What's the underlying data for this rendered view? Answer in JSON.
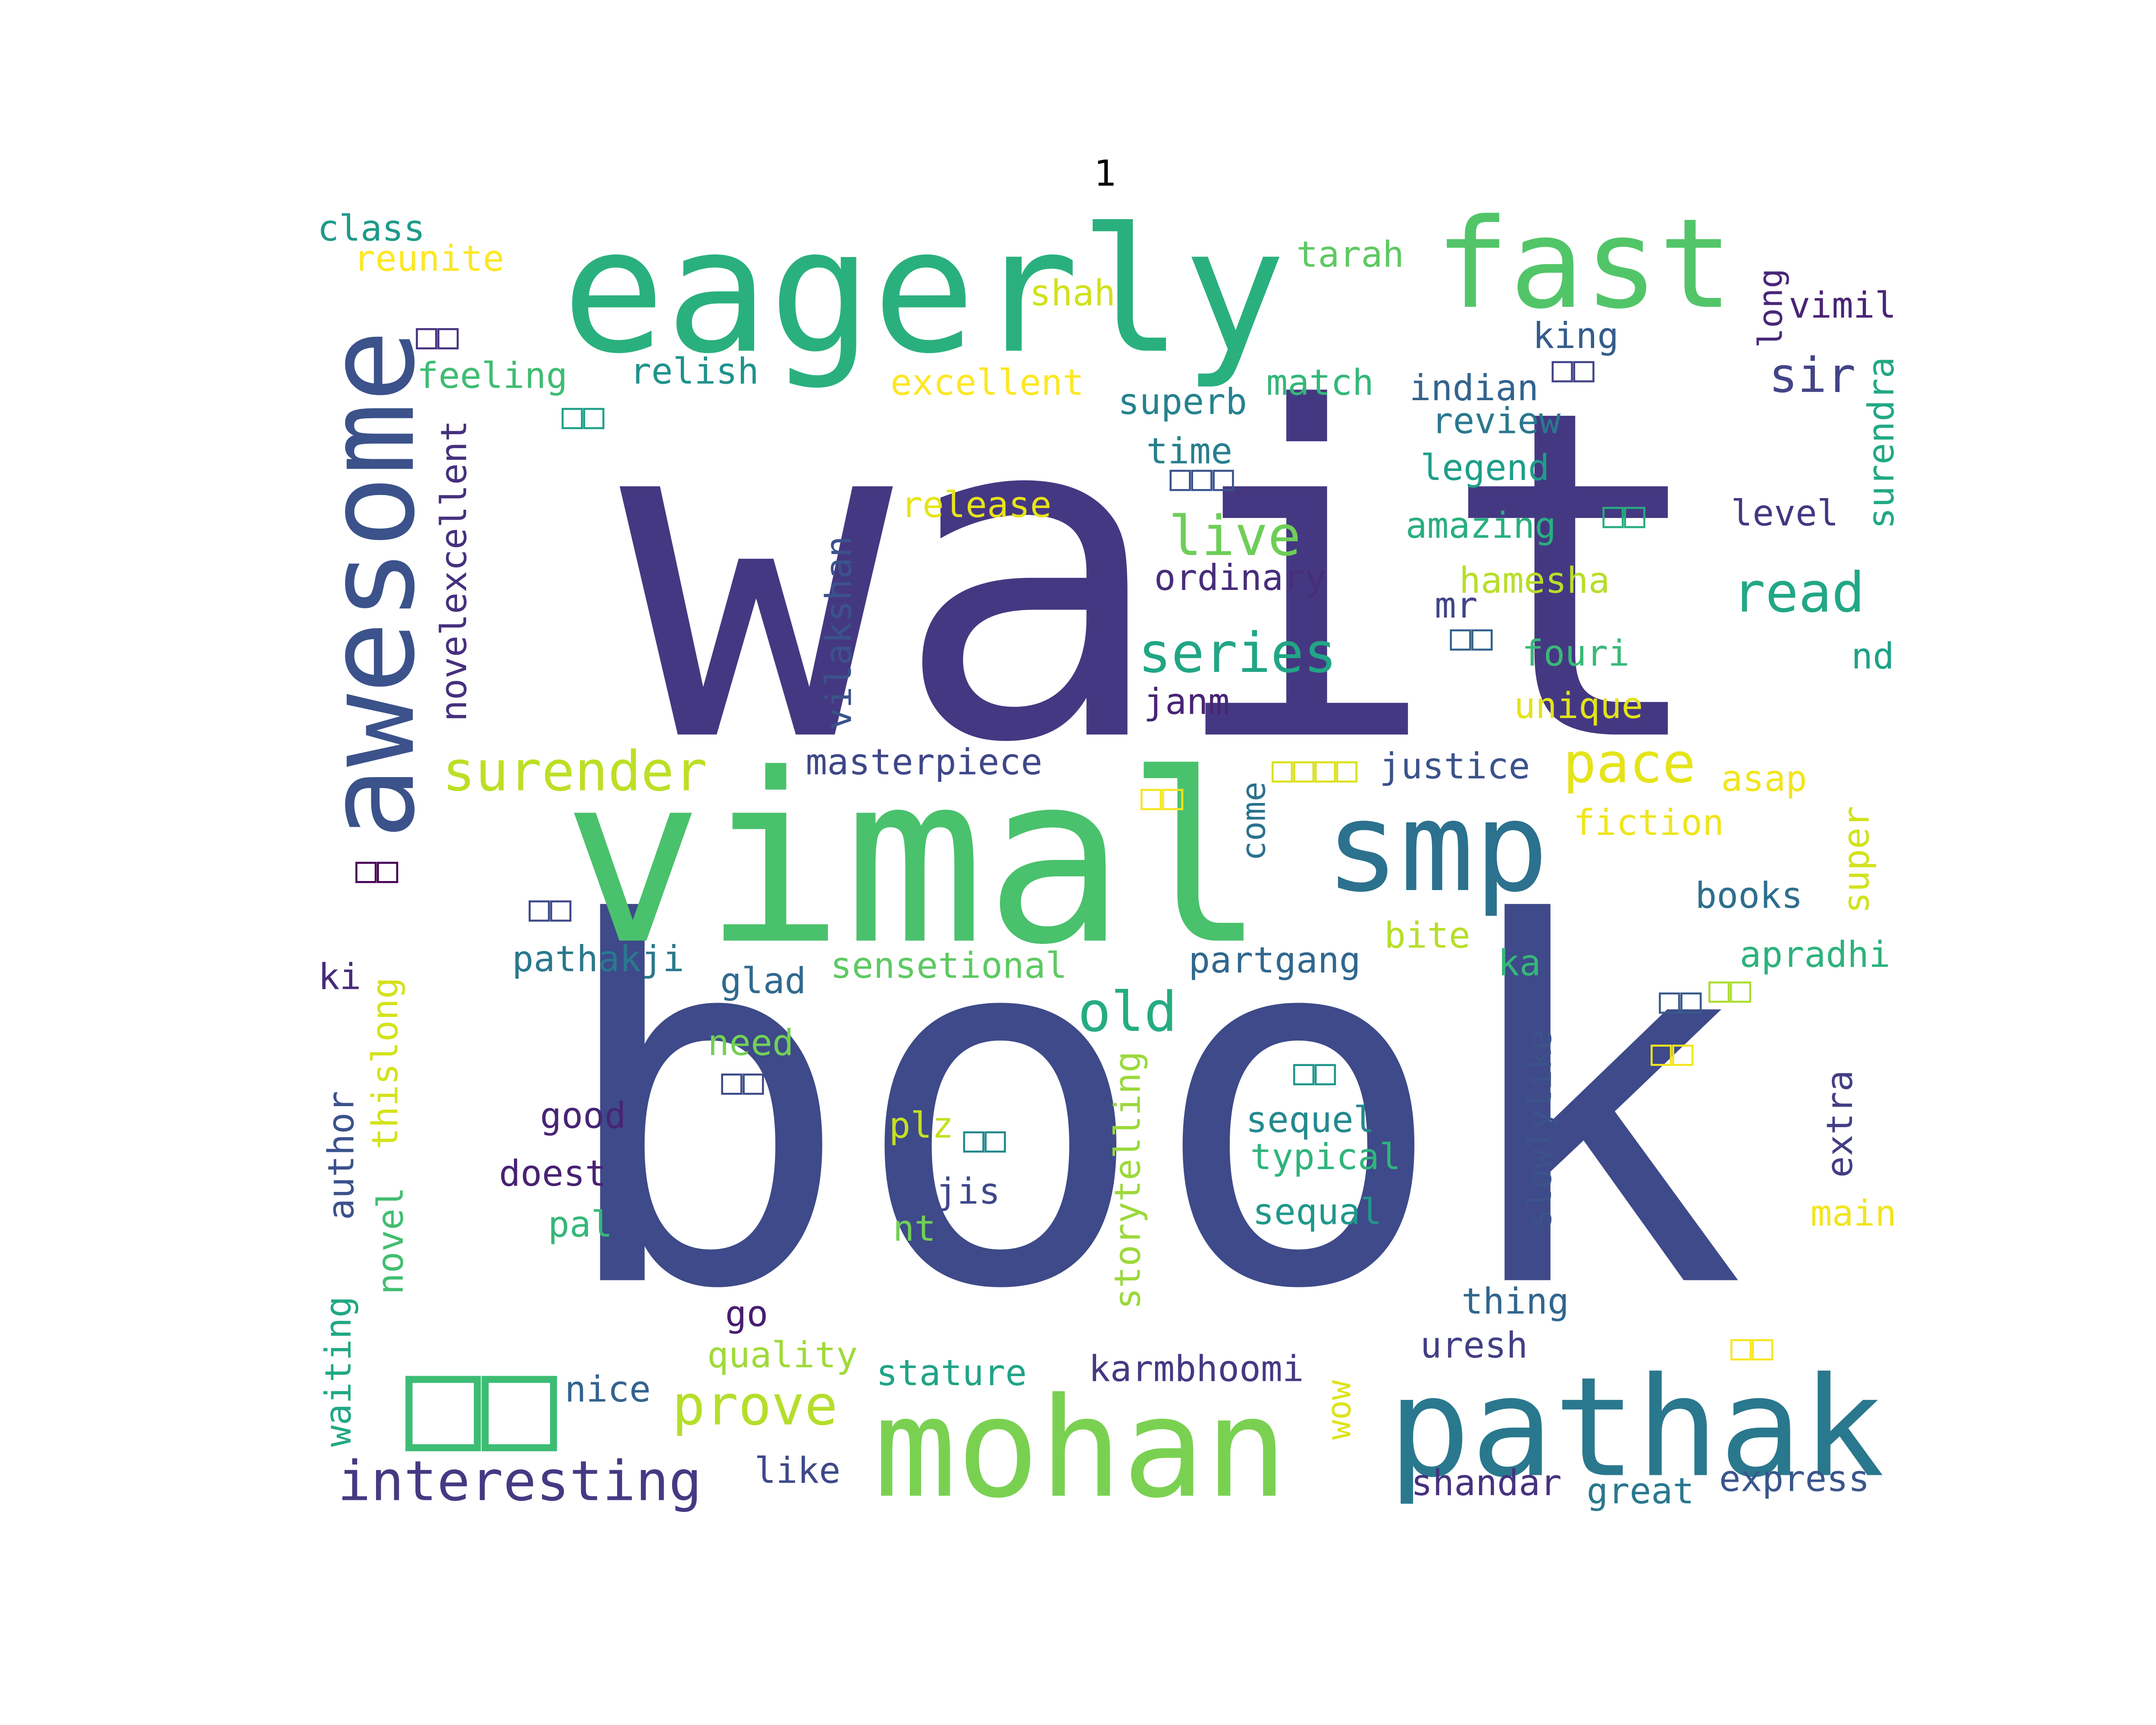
{
  "title": "1",
  "words": [
    {
      "text": "wait",
      "color": "#453882"
    },
    {
      "text": "book",
      "color": "#3e4a89"
    },
    {
      "text": "vimal",
      "color": "#4ac16d"
    },
    {
      "text": "eagerly",
      "color": "#2ab07f"
    },
    {
      "text": "fast",
      "color": "#52c569"
    },
    {
      "text": "mohan",
      "color": "#7ad151"
    },
    {
      "text": "pathak",
      "color": "#2a788e"
    },
    {
      "text": "smp",
      "color": "#2c718e"
    },
    {
      "text": "awesome",
      "color": "#3b528b"
    },
    {
      "text": "□□",
      "color": "#3dbc74"
    },
    {
      "text": "interesting",
      "color": "#443a83"
    },
    {
      "text": "prove",
      "color": "#b5de2b"
    },
    {
      "text": "old",
      "color": "#25ac82"
    },
    {
      "text": "surender",
      "color": "#bddf26"
    },
    {
      "text": "series",
      "color": "#21a685"
    },
    {
      "text": "live",
      "color": "#6ece58"
    },
    {
      "text": "pace",
      "color": "#e5e419"
    },
    {
      "text": "read",
      "color": "#22a785"
    },
    {
      "text": "sir",
      "color": "#414487"
    },
    {
      "text": "novelexcellent",
      "color": "#46307e"
    },
    {
      "text": "class",
      "color": "#1f9a8a"
    },
    {
      "text": "reunite",
      "color": "#fde725"
    },
    {
      "text": "□□",
      "color": "#46337f"
    },
    {
      "text": "feeling",
      "color": "#3fbc73"
    },
    {
      "text": "relish",
      "color": "#20928c"
    },
    {
      "text": "shah",
      "color": "#d0e11c"
    },
    {
      "text": "tarah",
      "color": "#5ec962"
    },
    {
      "text": "excellent",
      "color": "#fde725"
    },
    {
      "text": "superb",
      "color": "#26828e"
    },
    {
      "text": "match",
      "color": "#35b779"
    },
    {
      "text": "indian",
      "color": "#33638d"
    },
    {
      "text": "king",
      "color": "#365c8d"
    },
    {
      "text": "long",
      "color": "#482878"
    },
    {
      "text": "vimil",
      "color": "#482475"
    },
    {
      "text": "□□",
      "color": "#414487"
    },
    {
      "text": "review",
      "color": "#2a788e"
    },
    {
      "text": "surendra",
      "color": "#22a884"
    },
    {
      "text": "□□",
      "color": "#1fa088"
    },
    {
      "text": "time",
      "color": "#277f8e"
    },
    {
      "text": "□□□",
      "color": "#3b528b"
    },
    {
      "text": "legend",
      "color": "#1f9e89"
    },
    {
      "text": "level",
      "color": "#453781"
    },
    {
      "text": "release",
      "color": "#e7e419"
    },
    {
      "text": "amazing",
      "color": "#29af7f"
    },
    {
      "text": "□□",
      "color": "#26ad81"
    },
    {
      "text": "ordinary",
      "color": "#472d7b"
    },
    {
      "text": "hamesha",
      "color": "#b8de29"
    },
    {
      "text": "mr",
      "color": "#414487"
    },
    {
      "text": "vilakshan",
      "color": "#3b528b"
    },
    {
      "text": "□□",
      "color": "#34618d"
    },
    {
      "text": "fouri",
      "color": "#38b977"
    },
    {
      "text": "nd",
      "color": "#1fa187"
    },
    {
      "text": "janm",
      "color": "#482475"
    },
    {
      "text": "unique",
      "color": "#e2e418"
    },
    {
      "text": "masterpiece",
      "color": "#3f4788"
    },
    {
      "text": "□□□□",
      "color": "#d8e219"
    },
    {
      "text": "justice",
      "color": "#3b528b"
    },
    {
      "text": "asap",
      "color": "#f1e51d"
    },
    {
      "text": "□□",
      "color": "#f6e620"
    },
    {
      "text": "come",
      "color": "#2c728e"
    },
    {
      "text": "fiction",
      "color": "#efe51c"
    },
    {
      "text": "super",
      "color": "#d2e21b"
    },
    {
      "text": "□□",
      "color": "#440154"
    },
    {
      "text": "□□",
      "color": "#3e4989"
    },
    {
      "text": "books",
      "color": "#2e6e8e"
    },
    {
      "text": "bite",
      "color": "#b8de29"
    },
    {
      "text": "pathakji",
      "color": "#2a788e"
    },
    {
      "text": "partgang",
      "color": "#31678e"
    },
    {
      "text": "apradhi",
      "color": "#2db27d"
    },
    {
      "text": "ki",
      "color": "#472c7a"
    },
    {
      "text": "glad",
      "color": "#306a8e"
    },
    {
      "text": "sensetional",
      "color": "#5ec962"
    },
    {
      "text": "ka",
      "color": "#35b779"
    },
    {
      "text": "□□",
      "color": "#38598c"
    },
    {
      "text": "□□",
      "color": "#addc30"
    },
    {
      "text": "thislong",
      "color": "#d5e21a"
    },
    {
      "text": "need",
      "color": "#73d056"
    },
    {
      "text": "storytelling",
      "color": "#9bd93c"
    },
    {
      "text": "slowlylike",
      "color": "#3b528b"
    },
    {
      "text": "□□",
      "color": "#3e4a89"
    },
    {
      "text": "□□",
      "color": "#1f968b"
    },
    {
      "text": "□□",
      "color": "#f3e51e"
    },
    {
      "text": "author",
      "color": "#3b528b"
    },
    {
      "text": "good",
      "color": "#482475"
    },
    {
      "text": "plz",
      "color": "#c5e021"
    },
    {
      "text": "□□",
      "color": "#24878e"
    },
    {
      "text": "sequel",
      "color": "#23898e"
    },
    {
      "text": "typical",
      "color": "#2fb47c"
    },
    {
      "text": "extra",
      "color": "#433e85"
    },
    {
      "text": "doest",
      "color": "#482173"
    },
    {
      "text": "jis",
      "color": "#3f4889"
    },
    {
      "text": "novel",
      "color": "#42be71"
    },
    {
      "text": "pal",
      "color": "#35b779"
    },
    {
      "text": "nt",
      "color": "#73d056"
    },
    {
      "text": "sequal",
      "color": "#1f988b"
    },
    {
      "text": "main",
      "color": "#f1e51d"
    },
    {
      "text": "waiting",
      "color": "#22a884"
    },
    {
      "text": "thing",
      "color": "#31668e"
    },
    {
      "text": "go",
      "color": "#481d6f"
    },
    {
      "text": "uresh",
      "color": "#433e85"
    },
    {
      "text": "□□",
      "color": "#f8e621"
    },
    {
      "text": "quality",
      "color": "#a0da39"
    },
    {
      "text": "stature",
      "color": "#20a386"
    },
    {
      "text": "karmbhoomi",
      "color": "#443983"
    },
    {
      "text": "wow",
      "color": "#dde318"
    },
    {
      "text": "nice",
      "color": "#33638d"
    },
    {
      "text": "like",
      "color": "#3e4989"
    },
    {
      "text": "shandar",
      "color": "#46327e"
    },
    {
      "text": "great",
      "color": "#2a788e"
    },
    {
      "text": "express",
      "color": "#39568c"
    }
  ]
}
